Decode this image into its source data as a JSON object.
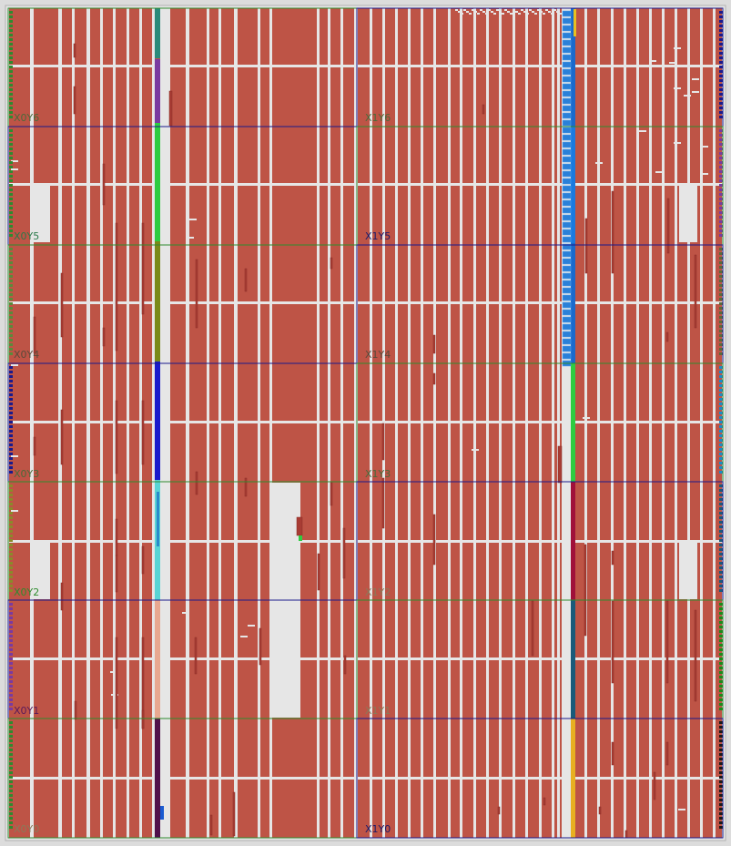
{
  "view": "fpga-device-floorplan",
  "colors": {
    "background": "#dcdcdc",
    "fabric": "#be5446",
    "placed": "#a83c34",
    "gap": "#e6e6e6",
    "region_border_green": "#2e8b2e",
    "region_border_blue": "#1a1a8c"
  },
  "clock_regions": [
    {
      "label": "X0Y6",
      "color": "#4a6a3a"
    },
    {
      "label": "X1Y6",
      "color": "#4a6a3a"
    },
    {
      "label": "X0Y5",
      "color": "#2a7a4a"
    },
    {
      "label": "X1Y5",
      "color": "#1a1a6a"
    },
    {
      "label": "X0Y4",
      "color": "#5a4a3a"
    },
    {
      "label": "X1Y4",
      "color": "#5a4a3a"
    },
    {
      "label": "X0Y3",
      "color": "#4a6a3a"
    },
    {
      "label": "X1Y3",
      "color": "#4a6a3a"
    },
    {
      "label": "X0Y2",
      "color": "#2e8b2e"
    },
    {
      "label": "X1Y2",
      "color": "#8a7a5a"
    },
    {
      "label": "X0Y1",
      "color": "#5a1a5a"
    },
    {
      "label": "X1Y1",
      "color": "#8a7a5a"
    },
    {
      "label": "X0Y0",
      "color": "#8a7a5a"
    },
    {
      "label": "X1Y0",
      "color": "#1a1a6a"
    }
  ]
}
